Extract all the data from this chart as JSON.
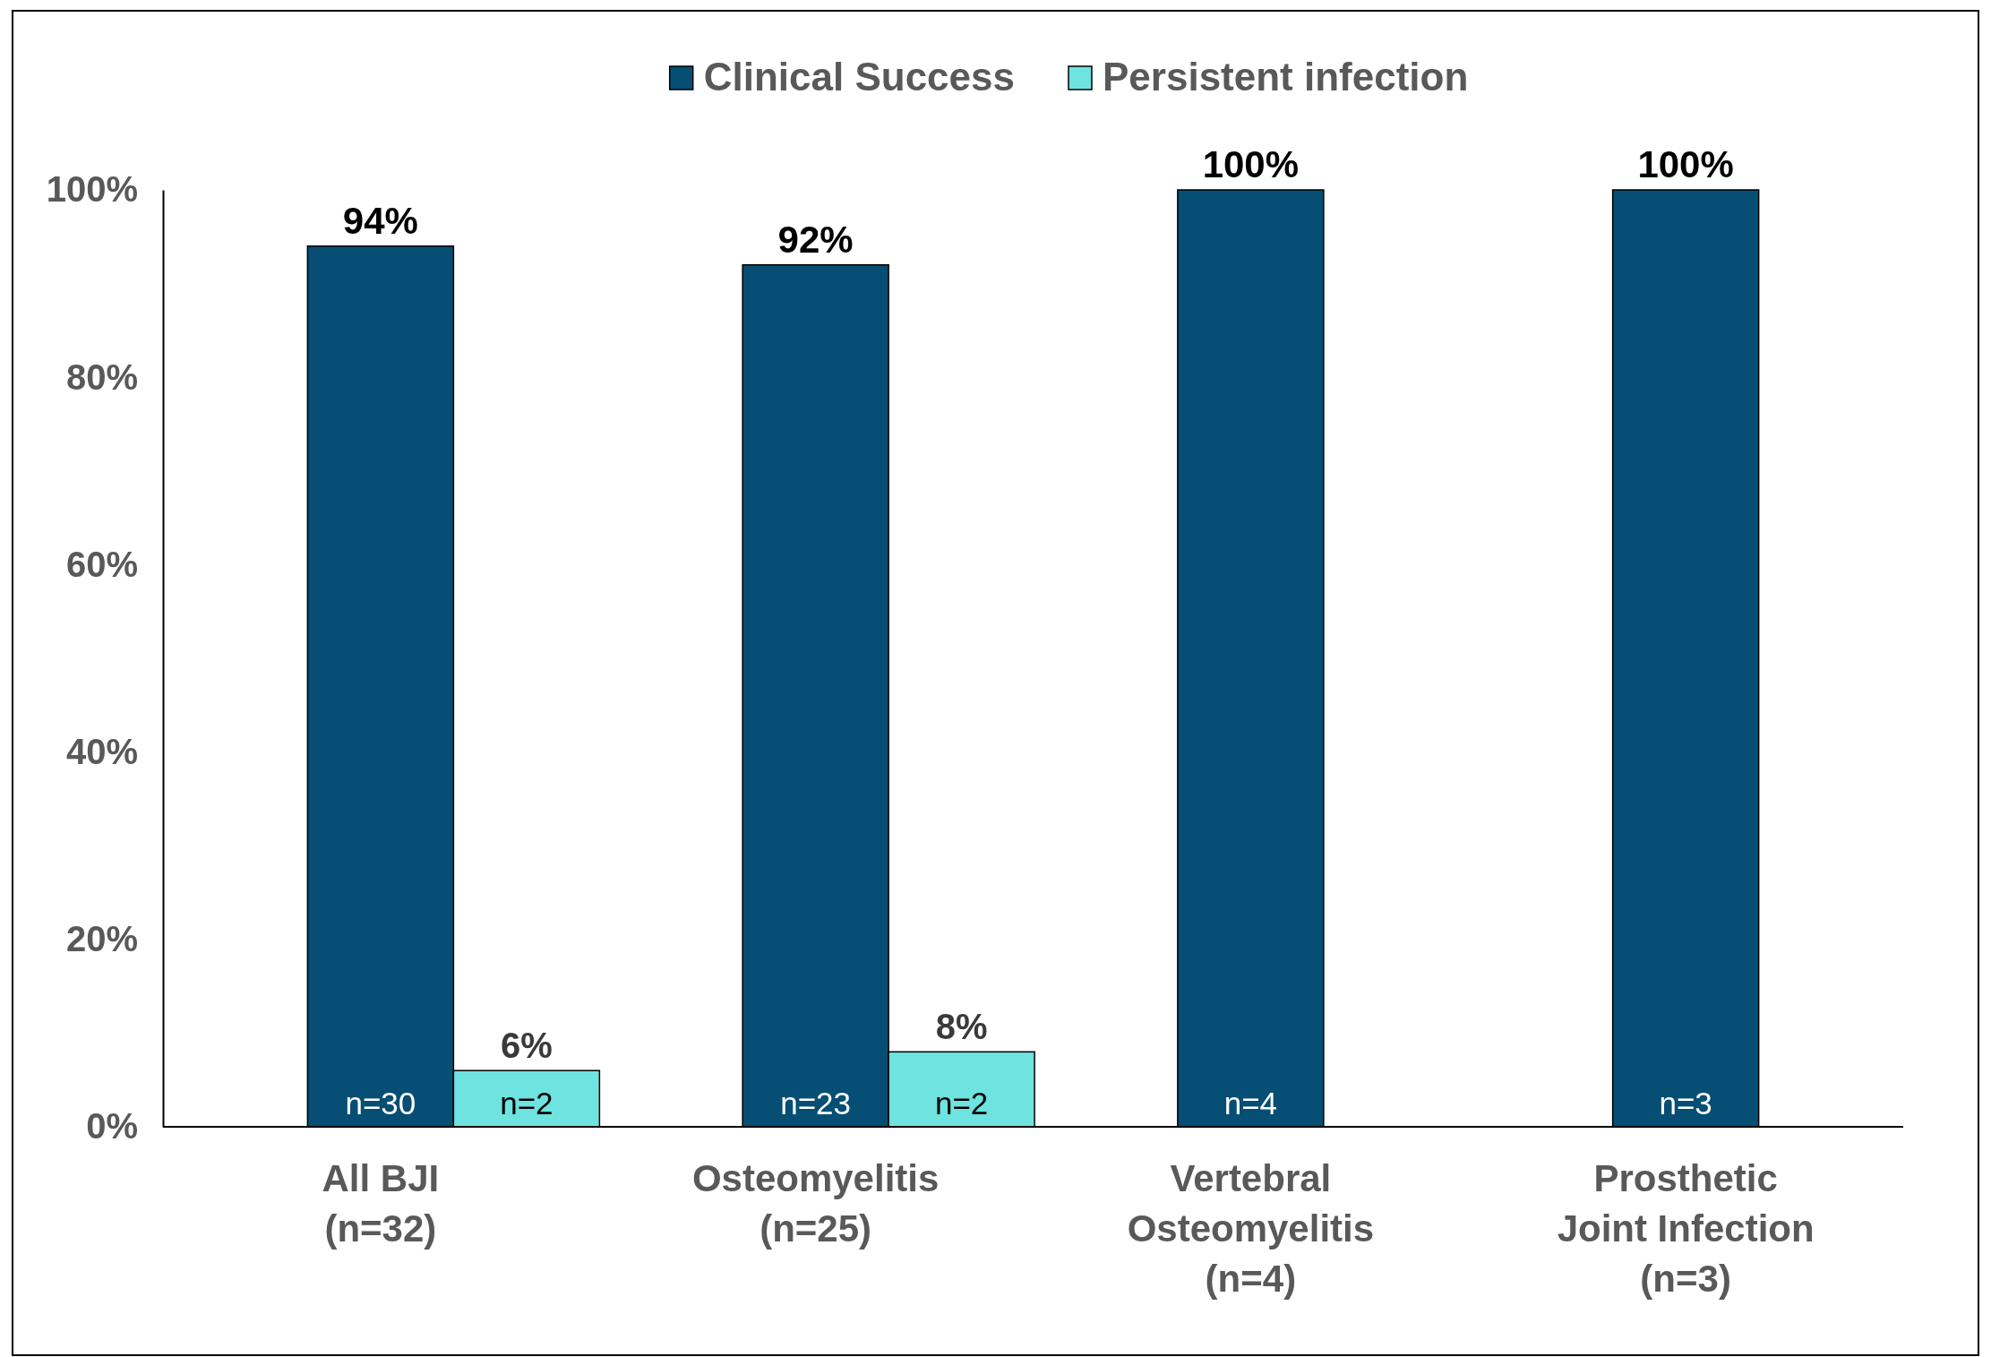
{
  "chart_data": {
    "type": "bar",
    "categories": [
      "All BJI (n=32)",
      "Osteomyelitis (n=25)",
      "Vertebral Osteomyelitis (n=4)",
      "Prosthetic Joint Infection (n=3)"
    ],
    "series": [
      {
        "name": "Clinical Success",
        "color": "#064e73",
        "values": [
          94,
          92,
          100,
          100
        ],
        "value_labels": [
          "94%",
          "92%",
          "100%",
          "100%"
        ]
      },
      {
        "name": "Persistent infection",
        "color": "#6ee3e0",
        "values": [
          6,
          8,
          null,
          null
        ],
        "value_labels": [
          "6%",
          "8%",
          null,
          null
        ]
      }
    ],
    "ylim": [
      0,
      100
    ],
    "yticks": [
      {
        "value": 0,
        "label": "0%"
      },
      {
        "value": 20,
        "label": "20%"
      },
      {
        "value": 40,
        "label": "40%"
      },
      {
        "value": 60,
        "label": "60%"
      },
      {
        "value": 80,
        "label": "80%"
      },
      {
        "value": 100,
        "label": "100%"
      }
    ],
    "annotations": [
      "n=30",
      "n=23",
      "n=4",
      "n=3",
      "n=2",
      "n=2"
    ],
    "grid": false,
    "legend": "top"
  }
}
